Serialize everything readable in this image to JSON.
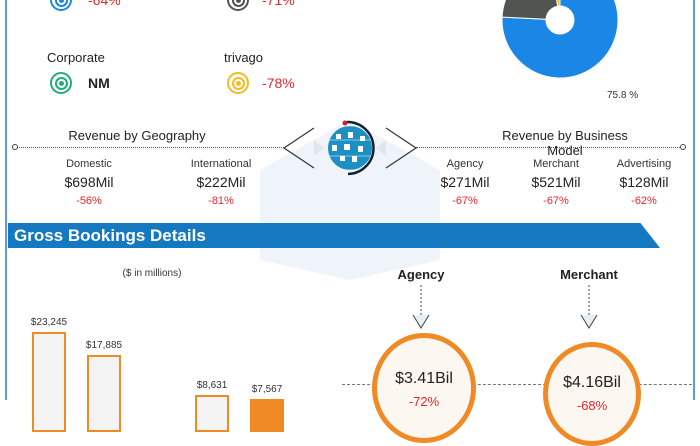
{
  "segments": [
    {
      "name": "",
      "change": "-64%",
      "color": "#1a86e6"
    },
    {
      "name": "",
      "change": "-71%",
      "color": "#505552"
    },
    {
      "name": "Corporate",
      "change": "NM",
      "color": "#1fae77"
    },
    {
      "name": "trivago",
      "change": "-78%",
      "color": "#f3bb22"
    }
  ],
  "chart_data": {
    "type": "pie",
    "slices": [
      {
        "value": 75.8,
        "label": "75.8 %",
        "color": "#1a86e6"
      },
      {
        "value": 21.6,
        "color": "#505552"
      },
      {
        "value": 2.6,
        "color": "#f3bb22"
      }
    ]
  },
  "geography": {
    "title": "Revenue by Geography",
    "items": [
      {
        "label": "Domestic",
        "value": "$698Mil",
        "change": "-56%"
      },
      {
        "label": "International",
        "value": "$222Mil",
        "change": "-81%"
      }
    ]
  },
  "business_model": {
    "title": "Revenue by Business Model",
    "items": [
      {
        "label": "Agency",
        "value": "$271Mil",
        "change": "-67%"
      },
      {
        "label": "Merchant",
        "value": "$521Mil",
        "change": "-67%"
      },
      {
        "label": "Advertising",
        "value": "$128Mil",
        "change": "-62%"
      }
    ]
  },
  "gross_bookings": {
    "title": "Gross Bookings Details",
    "units": "($ in millions)",
    "bars": [
      {
        "label": "$23,245",
        "value": 23245
      },
      {
        "label": "$17,885",
        "value": 17885
      },
      {
        "label": "$8,631",
        "value": 8631
      },
      {
        "label": "$7,567",
        "value": 7567
      }
    ],
    "agency": {
      "label": "Agency",
      "value": "$3.41Bil",
      "change": "-72%"
    },
    "merchant": {
      "label": "Merchant",
      "value": "$4.16Bil",
      "change": "-68%"
    }
  }
}
